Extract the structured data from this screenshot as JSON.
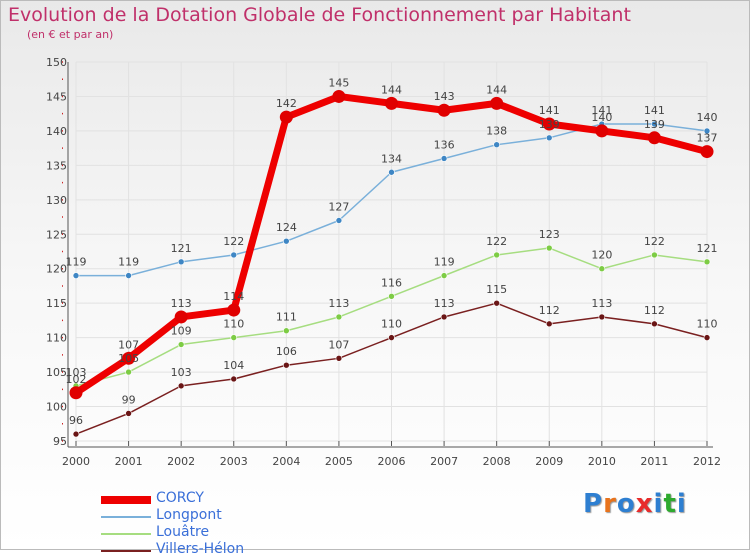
{
  "title": "Evolution de la Dotation Globale de Fonctionnement par Habitant",
  "subtitle": "(en € et par an)",
  "logo": {
    "letters": [
      "P",
      "r",
      "o",
      "x",
      "i",
      "t",
      "i"
    ],
    "colors": [
      "#2e7fd1",
      "#e8731c",
      "#2e7fd1",
      "#e82c2c",
      "#2e7fd1",
      "#2eaa2e",
      "#2e7fd1"
    ]
  },
  "chart_data": {
    "type": "line",
    "title": "Evolution de la Dotation Globale de Fonctionnement par Habitant",
    "ylabel": "(en € et par an)",
    "xlabel": "",
    "categories": [
      "2000",
      "2001",
      "2002",
      "2003",
      "2004",
      "2005",
      "2006",
      "2007",
      "2008",
      "2009",
      "2010",
      "2011",
      "2012"
    ],
    "ylim": [
      95,
      150
    ],
    "yticks": [
      "95",
      "100",
      "105",
      "110",
      "115",
      "120",
      "125",
      "130",
      "135",
      "140",
      "145",
      "150"
    ],
    "grid": true,
    "legend_position": "bottom-left",
    "series": [
      {
        "name": "CORCY",
        "values": [
          102,
          107,
          113,
          114,
          142,
          145,
          144,
          143,
          144,
          141,
          140,
          139,
          137
        ],
        "color": "#ee0000",
        "marker": "#e00000",
        "style": "thick"
      },
      {
        "name": "Longpont",
        "values": [
          119,
          119,
          121,
          122,
          124,
          127,
          134,
          136,
          138,
          139,
          141,
          141,
          140
        ],
        "color": "#7ab0da",
        "marker": "#3e86c4",
        "style": "thin"
      },
      {
        "name": "Louâtre",
        "values": [
          103,
          105,
          109,
          110,
          111,
          113,
          116,
          119,
          122,
          123,
          120,
          122,
          121
        ],
        "color": "#a6dd80",
        "marker": "#7dcc44",
        "style": "thin"
      },
      {
        "name": "Villers-Hélon",
        "values": [
          96,
          99,
          103,
          104,
          106,
          107,
          110,
          113,
          115,
          112,
          113,
          112,
          110
        ],
        "color": "#7a2020",
        "marker": "#6a1515",
        "style": "thin"
      }
    ]
  }
}
